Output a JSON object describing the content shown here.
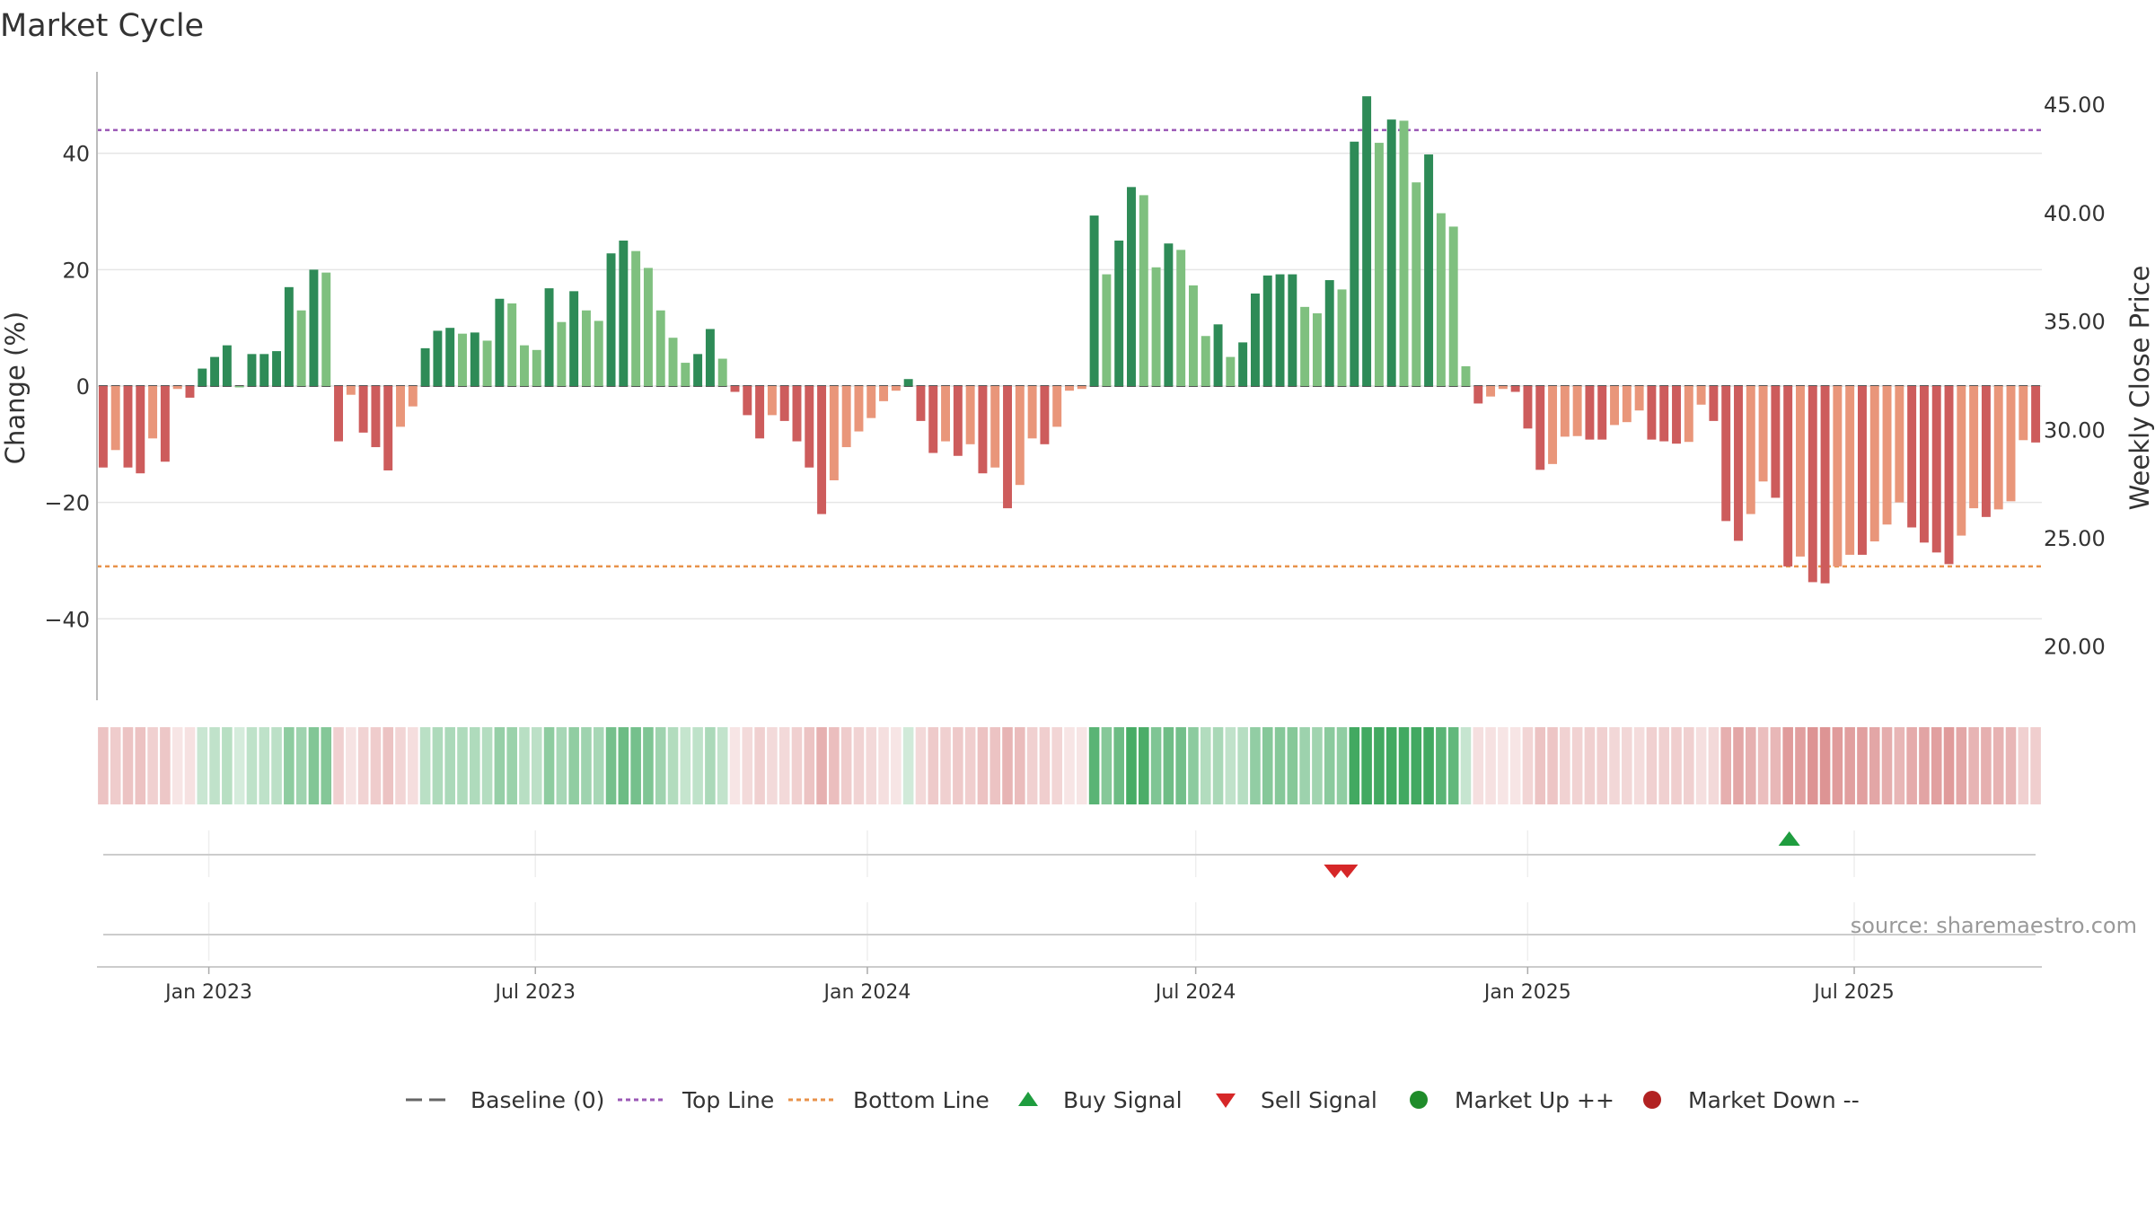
{
  "chart_data": {
    "type": "bar",
    "title": "Market Cycle",
    "ylabel_left": "Change (%)",
    "ylabel_right": "Weekly Close Price",
    "left_ylim": [
      -54,
      54
    ],
    "right_ylim": [
      17.5,
      46.5
    ],
    "left_ticks": [
      "40",
      "20",
      "0",
      "−20",
      "−40"
    ],
    "right_ticks": [
      "45.00",
      "40.00",
      "35.00",
      "30.00",
      "25.00",
      "20.00"
    ],
    "x_ticks": [
      "Jan 2023",
      "Jul 2023",
      "Jan 2024",
      "Jul 2024",
      "Jan 2025",
      "Jul 2025"
    ],
    "top_line": 44,
    "bottom_line": -31,
    "baseline": 0,
    "grid": true,
    "values": [
      -14,
      -11,
      -14,
      -15,
      -9,
      -13,
      -0.5,
      -2,
      3,
      5,
      7,
      0,
      5.5,
      5.5,
      6,
      17,
      13,
      20,
      19.5,
      -9.5,
      -1.5,
      -8,
      -10.5,
      -14.5,
      -7,
      -3.5,
      6.5,
      9.5,
      10,
      9,
      9.2,
      7.8,
      15,
      14.2,
      7,
      6.2,
      16.8,
      11,
      16.3,
      13,
      11.2,
      22.8,
      25,
      23.2,
      20.3,
      13,
      8.3,
      4,
      5.5,
      9.8,
      4.7,
      -1,
      -5,
      -9,
      -5,
      -6,
      -9.5,
      -14,
      -22,
      -16.2,
      -10.5,
      -7.8,
      -5.5,
      -2.6,
      -0.8,
      1.2,
      -6,
      -11.5,
      -9.5,
      -12,
      -10,
      -15,
      -14,
      -21,
      -17,
      -9,
      -10,
      -7,
      -0.8,
      -0.5,
      29.3,
      19.2,
      25,
      34.2,
      32.8,
      20.4,
      24.5,
      23.4,
      17.3,
      8.6,
      10.6,
      5,
      7.5,
      15.9,
      19,
      19.2,
      19.2,
      13.6,
      12.5,
      18.2,
      16.6,
      42,
      49.8,
      41.8,
      45.8,
      45.6,
      35,
      39.8,
      29.7,
      27.4,
      3.4,
      -3,
      -1.8,
      -0.5,
      -1,
      -7.3,
      -14.4,
      -13.4,
      -8.7,
      -8.6,
      -9.2,
      -9.2,
      -6.7,
      -6.2,
      -4.2,
      -9.2,
      -9.5,
      -9.9,
      -9.6,
      -3.2,
      -6,
      -23.2,
      -26.6,
      -22,
      -16.4,
      -19.2,
      -31,
      -29.3,
      -33.7,
      -33.9,
      -31,
      -29,
      -29,
      -26.7,
      -23.8,
      -20,
      -24.3,
      -26.9,
      -28.6,
      -30.6,
      -25.7,
      -21,
      -22.5,
      -21.2,
      -19.8,
      -9.3,
      -9.7
    ],
    "x_range": [
      "2022-10-31",
      "2025-10-13"
    ],
    "buy_signals": [
      {
        "date": "2025-05-26",
        "label": "Buy Signal"
      }
    ],
    "sell_signals": [
      {
        "date": "2024-09-16"
      },
      {
        "date": "2024-09-23"
      }
    ],
    "legend": [
      {
        "label": "Baseline (0)",
        "style": "dashed",
        "color": "#666666"
      },
      {
        "label": "Top Line",
        "style": "dotted",
        "color": "#9b59b6"
      },
      {
        "label": "Bottom Line",
        "style": "dotted",
        "color": "#e8924a"
      },
      {
        "label": "Buy Signal",
        "marker": "triangle-up",
        "color": "#1f9d3f"
      },
      {
        "label": "Sell Signal",
        "marker": "triangle-down",
        "color": "#d62728"
      },
      {
        "label": "Market Up ++",
        "marker": "circle",
        "color": "#1f8c2a"
      },
      {
        "label": "Market Down --",
        "marker": "circle",
        "color": "#b22222"
      }
    ],
    "legend_position": "bottom",
    "source": "source: sharemaestro.com"
  },
  "colors": {
    "pos_dark": "#2e8b57",
    "pos_light": "#7fc07f",
    "neg_dark": "#cd5c5c",
    "neg_light": "#e9967a",
    "top_line": "#9b59b6",
    "bottom_line": "#e8924a",
    "grid": "#e6e6e6"
  }
}
